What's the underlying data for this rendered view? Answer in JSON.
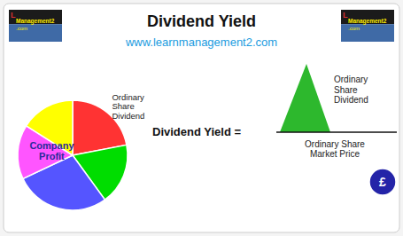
{
  "chart_data": {
    "type": "pie",
    "title": "Dividend Yield",
    "subtitle": "www.learnmanagement2.com",
    "values": [
      22,
      18,
      28,
      16,
      16
    ],
    "colors": [
      "#ff3333",
      "#00dd00",
      "#5555ff",
      "#ff55ff",
      "#ffff00"
    ],
    "annotations": [
      "Company\nProfit",
      "Ordinary\nShare\nDividend",
      "Dividend Yield =",
      "Ordinary\nShare\nDividend",
      "Ordinary Share\nMarket Price",
      "£",
      "L",
      "Management2",
      ".com"
    ]
  }
}
